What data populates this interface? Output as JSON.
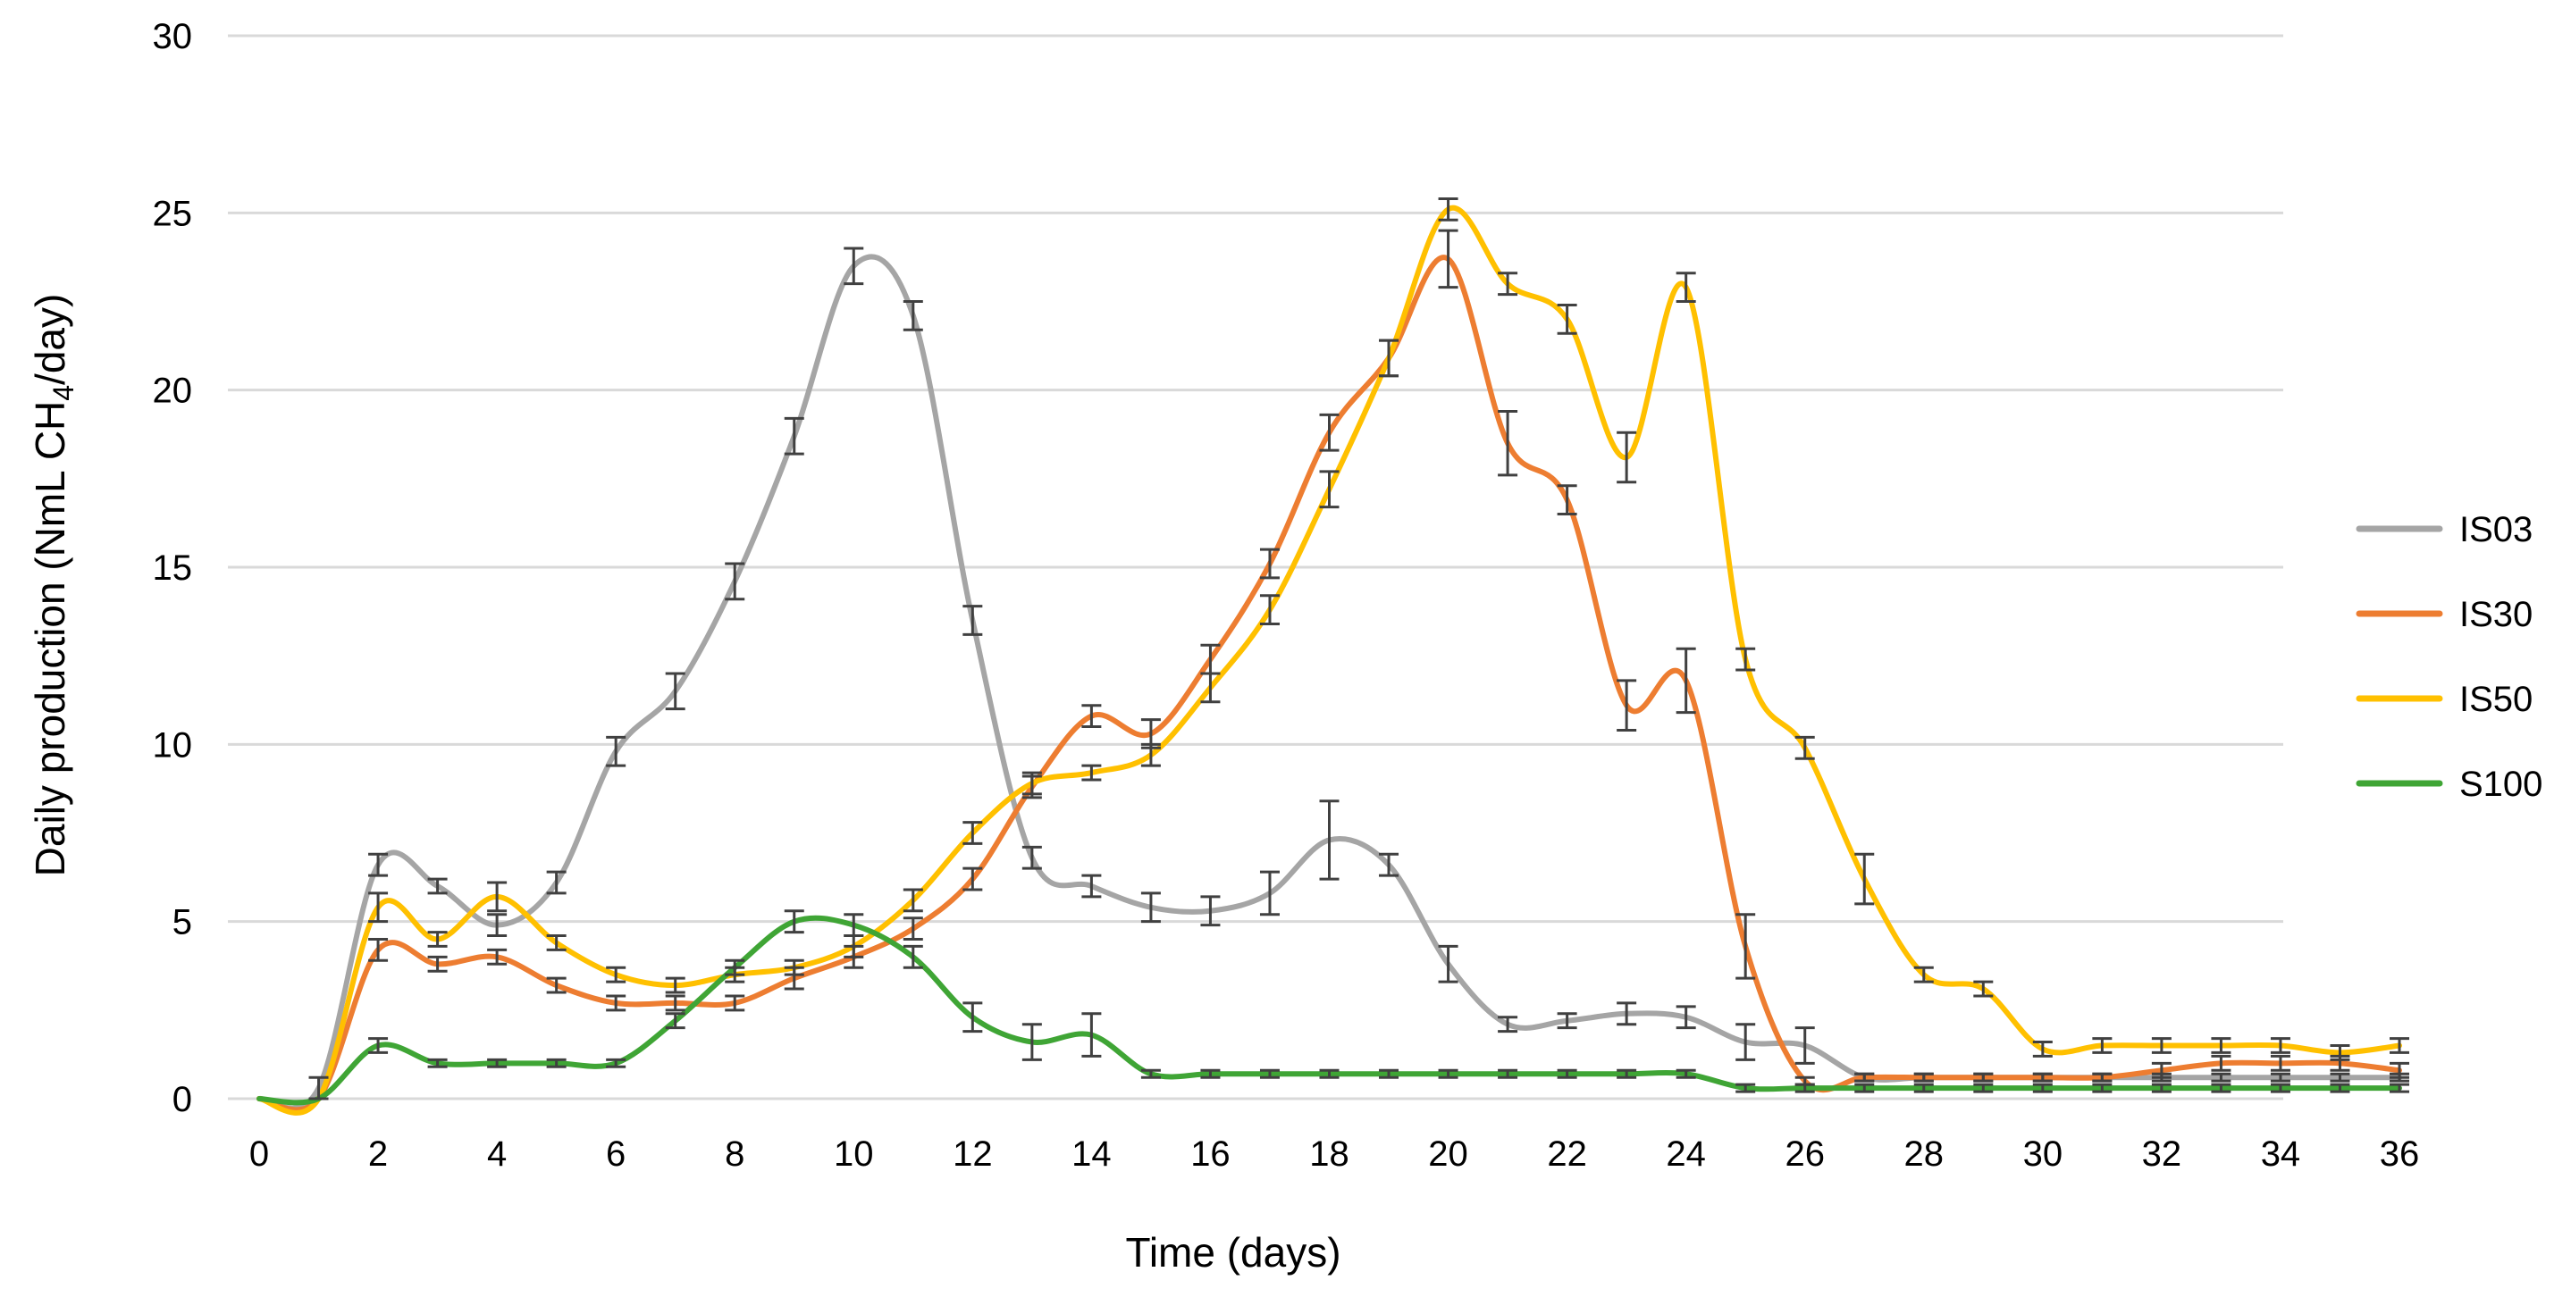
{
  "chart_data": {
    "type": "line",
    "title": "",
    "xlabel": "Time (days)",
    "ylabel": "Daily production (NmL CH4/day)",
    "ylabel_parts": {
      "prefix": "Daily production (NmL CH",
      "subscript": "4",
      "suffix": "/day)"
    },
    "xlim": [
      0,
      36
    ],
    "ylim": [
      0,
      30
    ],
    "x_ticks": [
      0,
      2,
      4,
      6,
      8,
      10,
      12,
      14,
      16,
      18,
      20,
      22,
      24,
      26,
      28,
      30,
      32,
      34,
      36
    ],
    "y_ticks": [
      0,
      5,
      10,
      15,
      20,
      25,
      30
    ],
    "grid": true,
    "legend_position": "right",
    "x": [
      0,
      1,
      2,
      3,
      4,
      5,
      6,
      7,
      8,
      9,
      10,
      11,
      12,
      13,
      14,
      15,
      16,
      17,
      18,
      19,
      20,
      21,
      22,
      23,
      24,
      25,
      26,
      27,
      28,
      29,
      30,
      31,
      32,
      33,
      34,
      35,
      36
    ],
    "series": [
      {
        "name": "IS03",
        "color": "#a5a5a5",
        "values": [
          0,
          0.3,
          6.6,
          6.0,
          4.9,
          6.1,
          9.8,
          11.5,
          14.6,
          18.7,
          23.5,
          22.1,
          13.5,
          6.8,
          6.0,
          5.4,
          5.3,
          5.8,
          7.3,
          6.6,
          3.8,
          2.1,
          2.2,
          2.4,
          2.3,
          1.6,
          1.5,
          0.6,
          0.6,
          0.6,
          0.6,
          0.6,
          0.6,
          0.6,
          0.6,
          0.6,
          0.6
        ],
        "errors": [
          0,
          0.3,
          0.3,
          0.2,
          0.3,
          0.3,
          0.4,
          0.5,
          0.5,
          0.5,
          0.5,
          0.4,
          0.4,
          0.3,
          0.3,
          0.4,
          0.4,
          0.6,
          1.1,
          0.3,
          0.5,
          0.2,
          0.2,
          0.3,
          0.3,
          0.5,
          0.5,
          0.1,
          0.1,
          0.1,
          0.1,
          0.1,
          0.1,
          0.1,
          0.1,
          0.1,
          0.1
        ]
      },
      {
        "name": "IS30",
        "color": "#ed7d31",
        "values": [
          0,
          0,
          4.2,
          3.8,
          4.0,
          3.2,
          2.7,
          2.7,
          2.7,
          3.4,
          4.0,
          4.8,
          6.2,
          8.8,
          10.8,
          10.3,
          12.4,
          15.1,
          18.8,
          20.9,
          23.7,
          18.5,
          16.9,
          11.1,
          11.8,
          4.3,
          0.5,
          0.6,
          0.6,
          0.6,
          0.6,
          0.6,
          0.8,
          1.0,
          1.0,
          1.0,
          0.8
        ],
        "errors": [
          0,
          0,
          0.3,
          0.2,
          0.2,
          0.2,
          0.2,
          0.2,
          0.2,
          0.3,
          0.3,
          0.3,
          0.3,
          0.3,
          0.3,
          0.4,
          0.4,
          0.4,
          0.5,
          0.5,
          0.8,
          0.9,
          0.4,
          0.7,
          0.9,
          0.9,
          0.1,
          0.1,
          0.1,
          0.1,
          0.1,
          0.1,
          0.2,
          0.2,
          0.2,
          0.2,
          0.2
        ]
      },
      {
        "name": "IS50",
        "color": "#ffc000",
        "values": [
          0,
          0,
          5.4,
          4.5,
          5.7,
          4.4,
          3.5,
          3.2,
          3.5,
          3.7,
          4.3,
          5.6,
          7.5,
          8.9,
          9.2,
          9.7,
          11.6,
          13.8,
          17.2,
          20.9,
          25.1,
          23.0,
          22.0,
          18.1,
          22.9,
          12.4,
          9.9,
          6.2,
          3.5,
          3.1,
          1.4,
          1.5,
          1.5,
          1.5,
          1.5,
          1.3,
          1.5
        ],
        "errors": [
          0,
          0,
          0.4,
          0.2,
          0.4,
          0.2,
          0.2,
          0.2,
          0.2,
          0.2,
          0.3,
          0.3,
          0.3,
          0.3,
          0.2,
          0.3,
          0.4,
          0.4,
          0.5,
          0.5,
          0.3,
          0.3,
          0.4,
          0.7,
          0.4,
          0.3,
          0.3,
          0.7,
          0.2,
          0.2,
          0.2,
          0.2,
          0.2,
          0.2,
          0.2,
          0.2,
          0.2
        ]
      },
      {
        "name": "S100",
        "color": "#3fa535",
        "values": [
          0,
          0,
          1.5,
          1.0,
          1.0,
          1.0,
          1.0,
          2.2,
          3.7,
          5.0,
          4.9,
          4.0,
          2.3,
          1.6,
          1.8,
          0.7,
          0.7,
          0.7,
          0.7,
          0.7,
          0.7,
          0.7,
          0.7,
          0.7,
          0.7,
          0.3,
          0.3,
          0.3,
          0.3,
          0.3,
          0.3,
          0.3,
          0.3,
          0.3,
          0.3,
          0.3,
          0.3
        ],
        "errors": [
          0,
          0,
          0.2,
          0.1,
          0.1,
          0.1,
          0.1,
          0.2,
          0.2,
          0.3,
          0.3,
          0.3,
          0.4,
          0.5,
          0.6,
          0.1,
          0.1,
          0.1,
          0.1,
          0.1,
          0.1,
          0.1,
          0.1,
          0.1,
          0.1,
          0.1,
          0.1,
          0.1,
          0.1,
          0.1,
          0.1,
          0.1,
          0.1,
          0.1,
          0.1,
          0.1,
          0.1
        ]
      }
    ]
  }
}
